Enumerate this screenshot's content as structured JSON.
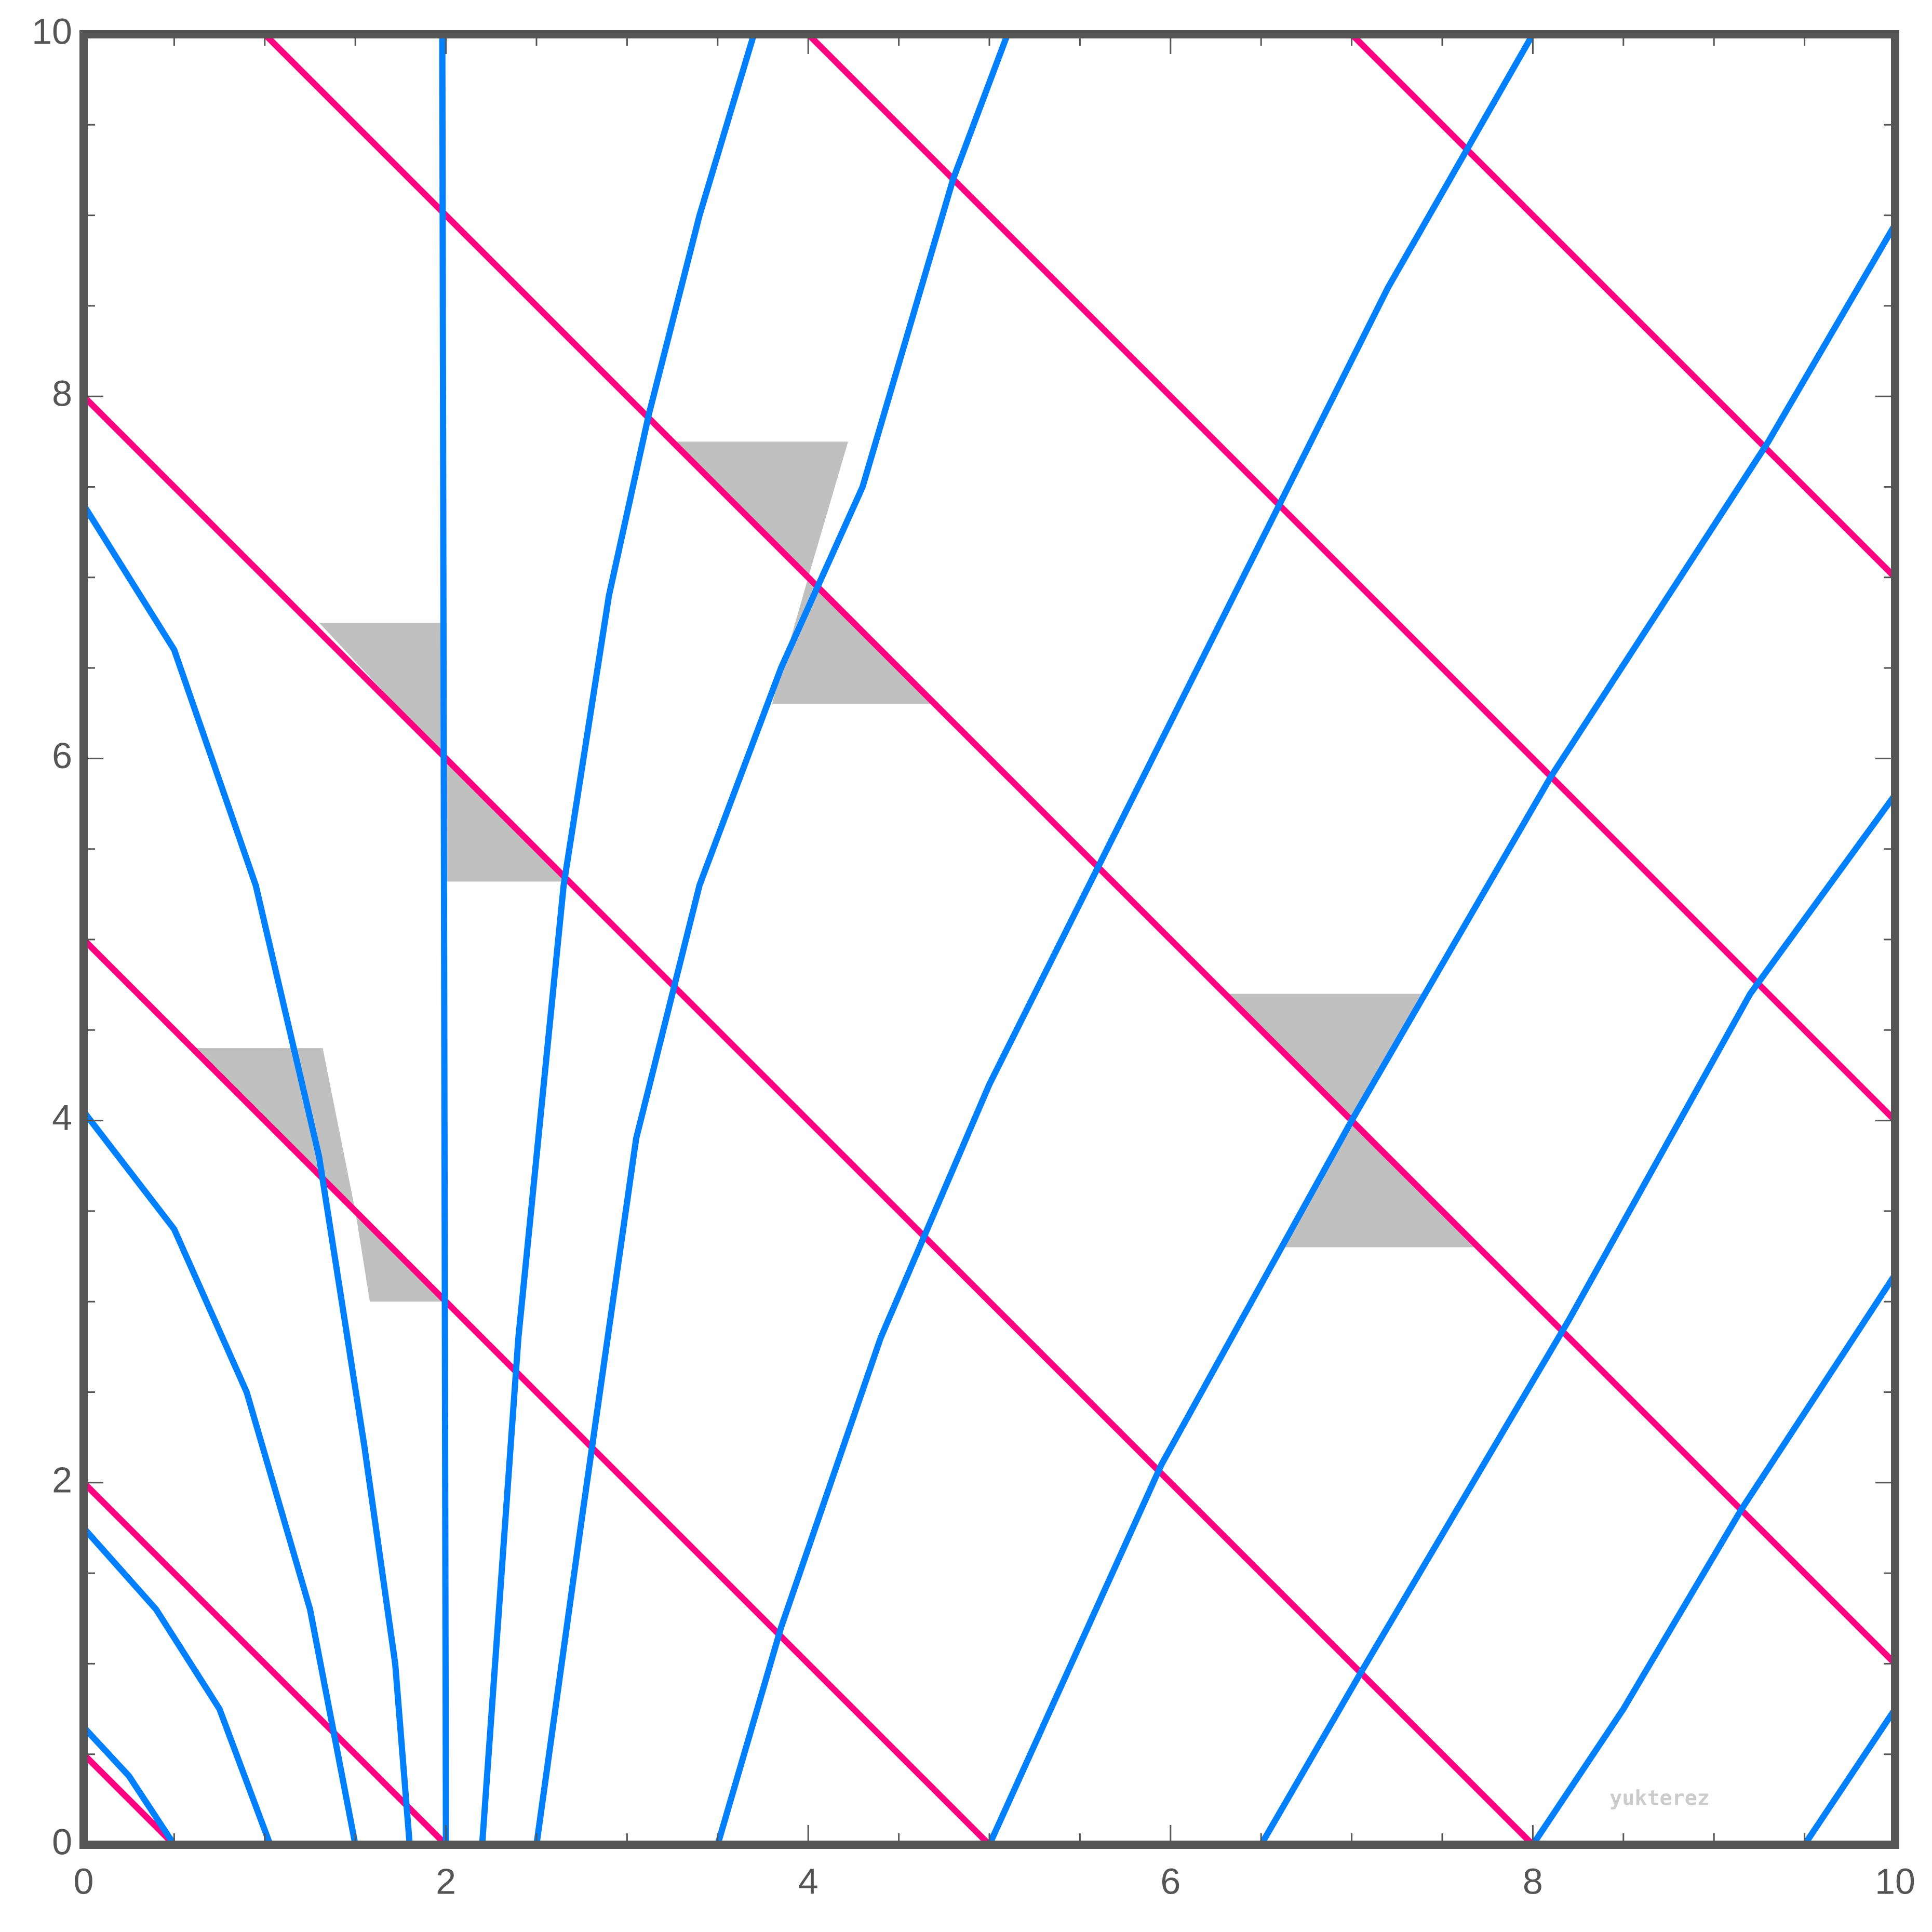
{
  "chart_data": {
    "type": "line",
    "xlim": [
      0,
      10
    ],
    "ylim": [
      0,
      10
    ],
    "xticks": [
      0,
      2,
      4,
      6,
      8,
      10
    ],
    "yticks": [
      0,
      2,
      4,
      6,
      8,
      10
    ],
    "minor_ticks": [
      0.5,
      1,
      1.5,
      2.5,
      3,
      3.5,
      4.5,
      5,
      5.5,
      6.5,
      7,
      7.5,
      8.5,
      9,
      9.5
    ],
    "series": [
      {
        "color": "#ff0080",
        "x": [
          0,
          0.5
        ],
        "values": [
          0.5,
          0
        ]
      },
      {
        "color": "#ff0080",
        "x": [
          0,
          2
        ],
        "values": [
          2,
          0
        ]
      },
      {
        "color": "#ff0080",
        "x": [
          0,
          5
        ],
        "values": [
          5,
          0
        ]
      },
      {
        "color": "#ff0080",
        "x": [
          0,
          8
        ],
        "values": [
          8,
          0
        ]
      },
      {
        "color": "#ff0080",
        "x": [
          1,
          10
        ],
        "values": [
          10,
          1
        ]
      },
      {
        "color": "#ff0080",
        "x": [
          4,
          10
        ],
        "values": [
          10,
          4
        ]
      },
      {
        "color": "#ff0080",
        "x": [
          7,
          10
        ],
        "values": [
          10,
          7
        ]
      },
      {
        "color": "#0080ff",
        "x": [
          0,
          0.25,
          0.5
        ],
        "values": [
          0.65,
          0.38,
          0
        ]
      },
      {
        "color": "#0080ff",
        "x": [
          0,
          0.4,
          0.75,
          1.03
        ],
        "values": [
          1.75,
          1.3,
          0.75,
          0
        ]
      },
      {
        "color": "#0080ff",
        "x": [
          0,
          0.5,
          0.9,
          1.25,
          1.5
        ],
        "values": [
          4.05,
          3.4,
          2.5,
          1.3,
          0
        ]
      },
      {
        "color": "#0080ff",
        "x": [
          0,
          0.5,
          0.95,
          1.3,
          1.55,
          1.72,
          1.8
        ],
        "values": [
          7.4,
          6.6,
          5.3,
          3.8,
          2.2,
          1,
          0
        ]
      },
      {
        "color": "#0080ff",
        "x": [
          1.98,
          2.0
        ],
        "values": [
          10,
          0
        ]
      },
      {
        "color": "#0080ff",
        "x": [
          2.2,
          2.4,
          2.65,
          2.9,
          3.12,
          3.4,
          3.7
        ],
        "values": [
          0,
          2.8,
          5.3,
          6.9,
          7.9,
          9.0,
          10
        ]
      },
      {
        "color": "#0080ff",
        "x": [
          2.5,
          2.75,
          3.05,
          3.4,
          3.85,
          4.3,
          4.8,
          5.1
        ],
        "values": [
          0,
          1.8,
          3.9,
          5.3,
          6.5,
          7.5,
          9.2,
          10
        ]
      },
      {
        "color": "#0080ff",
        "x": [
          3.5,
          3.85,
          4.4,
          5.0,
          5.6,
          6.4,
          7.2,
          8.0
        ],
        "values": [
          0,
          1.2,
          2.8,
          4.2,
          5.4,
          7.0,
          8.6,
          10
        ]
      },
      {
        "color": "#0080ff",
        "x": [
          5.0,
          5.95,
          7.0,
          8.1,
          9.3,
          10
        ],
        "values": [
          0,
          2.1,
          4.0,
          5.9,
          7.75,
          8.95
        ]
      },
      {
        "color": "#0080ff",
        "x": [
          6.5,
          7.05,
          8.2,
          9.2,
          10
        ],
        "values": [
          0,
          0.95,
          2.9,
          4.7,
          5.8
        ]
      },
      {
        "color": "#0080ff",
        "x": [
          8.0,
          8.5,
          9.15,
          10
        ],
        "values": [
          0,
          0.75,
          1.85,
          3.15
        ]
      },
      {
        "color": "#0080ff",
        "x": [
          9.5,
          10
        ],
        "values": [
          0,
          0.75
        ]
      }
    ],
    "regions": [
      {
        "color": "#c0c0c0",
        "x": [
          0.6,
          1.32,
          1.5,
          2.0,
          1.58,
          1.5
        ],
        "values": [
          4.4,
          4.4,
          3.5,
          3.0,
          3.0,
          3.5
        ]
      },
      {
        "color": "#c0c0c0",
        "x": [
          1.3,
          2.0,
          2.0,
          2.68,
          2.0,
          2.0
        ],
        "values": [
          6.75,
          6.75,
          6.0,
          5.32,
          5.32,
          6.0
        ]
      },
      {
        "color": "#c0c0c0",
        "x": [
          3.25,
          4.22,
          4.0,
          4.7,
          3.8,
          4.0
        ],
        "values": [
          7.75,
          7.75,
          7.0,
          6.3,
          6.3,
          7.0
        ]
      },
      {
        "color": "#c0c0c0",
        "x": [
          6.3,
          7.4,
          7.0,
          7.7,
          6.6,
          7.0
        ],
        "values": [
          4.7,
          4.7,
          4.0,
          3.3,
          3.3,
          4.0
        ]
      }
    ],
    "annotation": {
      "text": "yukterez",
      "x": 8.7,
      "y": 0.22
    }
  }
}
